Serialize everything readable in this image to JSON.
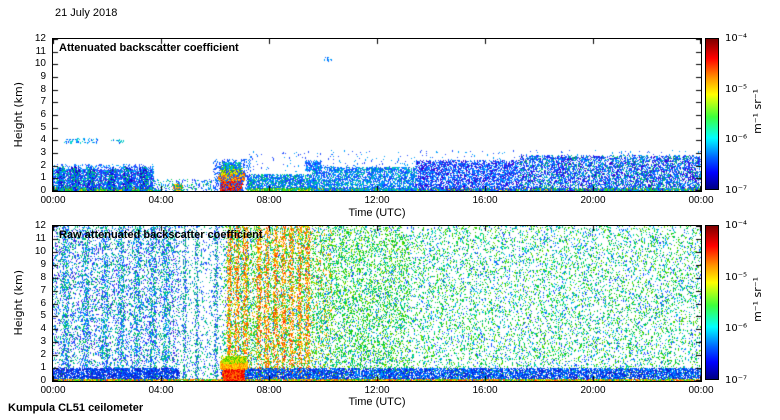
{
  "figure": {
    "date": "21 July 2018",
    "instrument": "Kumpula CL51 ceilometer"
  },
  "chart_data": [
    {
      "type": "heatmap",
      "title": "Attenuated backscatter coefficient",
      "xlabel": "Time (UTC)",
      "ylabel": "Height (km)",
      "xticks": [
        "00:00",
        "04:00",
        "08:00",
        "12:00",
        "16:00",
        "20:00",
        "00:00"
      ],
      "yticks": [
        "12",
        "11",
        "10",
        "9",
        "8",
        "7",
        "6",
        "5",
        "4",
        "3",
        "2",
        "1",
        "0"
      ],
      "x_range_hours": [
        0,
        24
      ],
      "ylim_km": [
        0,
        12
      ],
      "grid": false,
      "colorbar": {
        "scale": "log",
        "range": [
          "1e-7",
          "1e-4"
        ],
        "ticks": [
          "10⁻⁴",
          "10⁻⁵",
          "10⁻⁶",
          "10⁻⁷"
        ],
        "unit": "m⁻¹ sr⁻¹",
        "stops": [
          [
            "#7f0000",
            0
          ],
          [
            "#ff0000",
            13
          ],
          [
            "#ff9600",
            26
          ],
          [
            "#ffff00",
            37
          ],
          [
            "#3cff3c",
            52
          ],
          [
            "#00ffff",
            66
          ],
          [
            "#0064ff",
            79
          ],
          [
            "#0000ff",
            89
          ],
          [
            "#000082",
            100
          ]
        ]
      },
      "features": [
        {
          "kind": "speckle",
          "x": [
            0,
            0.155
          ],
          "y": [
            0,
            0.3
          ],
          "n": 1400,
          "colors": [
            "#00a550",
            "#00c832",
            "#64dc00",
            "#00b48c",
            "#ffc800"
          ]
        },
        {
          "kind": "speckle",
          "x": [
            0,
            0.155
          ],
          "y": [
            0.2,
            1.7
          ],
          "n": 2400,
          "colors": [
            "#1e3cff",
            "#0050ff",
            "#0096ff",
            "#4b0fd2",
            "#00c8b4"
          ]
        },
        {
          "kind": "speckle",
          "x": [
            0,
            0.155
          ],
          "y": [
            1.5,
            2.1
          ],
          "n": 280,
          "colors": [
            "#2850ff",
            "#00aaff"
          ]
        },
        {
          "kind": "columns",
          "centers": [
            0.012,
            0.035,
            0.058,
            0.09,
            0.115,
            0.14
          ],
          "width": 0.012,
          "y": [
            0,
            1.9
          ],
          "n": 240,
          "colors": [
            "#0032ff",
            "#0082ff",
            "#00c86e",
            "#1e00c8"
          ]
        },
        {
          "kind": "speckle",
          "x": [
            0.018,
            0.07
          ],
          "y": [
            3.75,
            4.15
          ],
          "n": 70,
          "colors": [
            "#0046ff",
            "#00aaff",
            "#00d2d2"
          ]
        },
        {
          "kind": "speckle",
          "x": [
            0.09,
            0.11
          ],
          "y": [
            3.85,
            4.05
          ],
          "n": 16,
          "colors": [
            "#0046ff",
            "#00c8c8"
          ]
        },
        {
          "kind": "speckle",
          "x": [
            0.155,
            0.245
          ],
          "y": [
            0,
            0.9
          ],
          "n": 220,
          "colors": [
            "#2850ff",
            "#00a0ff",
            "#00c864"
          ]
        },
        {
          "kind": "speckle",
          "x": [
            0.186,
            0.2
          ],
          "y": [
            0,
            0.5
          ],
          "n": 150,
          "colors": [
            "#00c850",
            "#ffd200",
            "#ff8c00",
            "#1e50ff"
          ]
        },
        {
          "kind": "speckle",
          "x": [
            0.258,
            0.292
          ],
          "y": [
            0,
            0.95
          ],
          "n": 1500,
          "colors": [
            "#ff0000",
            "#ff3c00",
            "#c80000",
            "#ff7800"
          ]
        },
        {
          "kind": "speckle",
          "x": [
            0.256,
            0.296
          ],
          "y": [
            0.85,
            1.45
          ],
          "n": 800,
          "colors": [
            "#ff7800",
            "#ffb400",
            "#ffe100",
            "#ff4600"
          ]
        },
        {
          "kind": "speckle",
          "x": [
            0.259,
            0.293
          ],
          "y": [
            1.35,
            1.85
          ],
          "n": 420,
          "colors": [
            "#ffe100",
            "#a0e600",
            "#28c800"
          ]
        },
        {
          "kind": "speckle",
          "x": [
            0.262,
            0.29
          ],
          "y": [
            1.75,
            2.25
          ],
          "n": 240,
          "colors": [
            "#28c800",
            "#00d2a0",
            "#00a0ff"
          ]
        },
        {
          "kind": "speckle",
          "x": [
            0.248,
            0.305
          ],
          "y": [
            0,
            2.5
          ],
          "n": 400,
          "colors": [
            "#1e3cff",
            "#0078ff"
          ]
        },
        {
          "kind": "speckle",
          "x": [
            0.3,
            0.4
          ],
          "y": [
            0,
            1.3
          ],
          "n": 1400,
          "colors": [
            "#1e3cff",
            "#0064ff",
            "#00a0ff",
            "#00c878"
          ]
        },
        {
          "kind": "speckle",
          "x": [
            0.3,
            1
          ],
          "y": [
            0,
            0.22
          ],
          "n": 2600,
          "colors": [
            "#00aa44",
            "#22cc22",
            "#66dd00",
            "#00bb99",
            "#ffcc00"
          ]
        },
        {
          "kind": "speckle",
          "x": [
            0.39,
            0.415
          ],
          "y": [
            1.6,
            2.4
          ],
          "n": 200,
          "colors": [
            "#1e3cff",
            "#0078ff",
            "#00b4ff"
          ]
        },
        {
          "kind": "speckle",
          "x": [
            0.4,
            0.56
          ],
          "y": [
            0,
            1.9
          ],
          "n": 2400,
          "colors": [
            "#1e3cff",
            "#0064ff",
            "#0096ff",
            "#00c8a0"
          ]
        },
        {
          "kind": "speckle",
          "x": [
            0.56,
            0.72
          ],
          "y": [
            0,
            2.4
          ],
          "n": 2800,
          "colors": [
            "#1e3cff",
            "#0064ff",
            "#0096ff",
            "#3c00d2"
          ]
        },
        {
          "kind": "speckle",
          "x": [
            0.72,
            1
          ],
          "y": [
            0,
            2.8
          ],
          "n": 5000,
          "colors": [
            "#1e3cff",
            "#0064ff",
            "#0096ff",
            "#3c00d2",
            "#00b478"
          ]
        },
        {
          "kind": "speckle",
          "x": [
            0.3,
            1
          ],
          "y": [
            1.5,
            3.2
          ],
          "n": 380,
          "colors": [
            "#2850ff",
            "#00a0ff"
          ]
        },
        {
          "kind": "speckle",
          "x": [
            0.418,
            0.43
          ],
          "y": [
            10.3,
            10.6
          ],
          "n": 10,
          "colors": [
            "#0064ff",
            "#00a0ff"
          ]
        }
      ]
    },
    {
      "type": "heatmap",
      "title": "Raw attenuated backscatter coefficient",
      "xlabel": "Time (UTC)",
      "ylabel": "Height (km)",
      "xticks": [
        "00:00",
        "04:00",
        "08:00",
        "12:00",
        "16:00",
        "20:00",
        "00:00"
      ],
      "yticks": [
        "12",
        "11",
        "10",
        "9",
        "8",
        "7",
        "6",
        "5",
        "4",
        "3",
        "2",
        "1",
        "0"
      ],
      "x_range_hours": [
        0,
        24
      ],
      "ylim_km": [
        0,
        12
      ],
      "grid": false,
      "colorbar": {
        "scale": "log",
        "range": [
          "1e-7",
          "1e-4"
        ],
        "ticks": [
          "10⁻⁴",
          "10⁻⁵",
          "10⁻⁶",
          "10⁻⁷"
        ],
        "unit": "m⁻¹ sr⁻¹",
        "stops": [
          [
            "#7f0000",
            0
          ],
          [
            "#ff0000",
            13
          ],
          [
            "#ff9600",
            26
          ],
          [
            "#ffff00",
            37
          ],
          [
            "#3cff3c",
            52
          ],
          [
            "#00ffff",
            66
          ],
          [
            "#0064ff",
            79
          ],
          [
            "#0000ff",
            89
          ],
          [
            "#000082",
            100
          ]
        ]
      },
      "features": [
        {
          "kind": "speckle",
          "x": [
            0,
            0.195
          ],
          "y": [
            0,
            12
          ],
          "n": 5200,
          "colors": [
            "#2850ff",
            "#0082ff",
            "#00c8a0",
            "#00aa55",
            "#4b28e6"
          ]
        },
        {
          "kind": "columns",
          "centers": [
            0.02,
            0.05,
            0.08,
            0.105,
            0.13,
            0.155,
            0.175
          ],
          "width": 0.01,
          "y": [
            0,
            12
          ],
          "n": 340,
          "colors": [
            "#1e46ff",
            "#00a0ff",
            "#00c864"
          ]
        },
        {
          "kind": "speckle",
          "x": [
            0.195,
            0.26
          ],
          "y": [
            0,
            12
          ],
          "n": 850,
          "colors": [
            "#2850ff",
            "#00a0c8",
            "#00c864"
          ]
        },
        {
          "kind": "columns",
          "centers": [
            0.203,
            0.222,
            0.252
          ],
          "width": 0.005,
          "y": [
            0,
            12
          ],
          "n": 220,
          "colors": [
            "#2850ff",
            "#00b478"
          ]
        },
        {
          "kind": "speckle",
          "x": [
            0.26,
            1
          ],
          "y": [
            0,
            12
          ],
          "n": 15500,
          "colors": [
            "#00c832",
            "#28d200",
            "#00be78",
            "#64dc00",
            "#00a0ff",
            "#1e50ff",
            "#00dcb4"
          ]
        },
        {
          "kind": "speckle",
          "x": [
            0.27,
            0.55
          ],
          "y": [
            0,
            12
          ],
          "n": 4000,
          "colors": [
            "#00c832",
            "#50d200",
            "#00c88c",
            "#96e600"
          ]
        },
        {
          "kind": "columns",
          "centers": [
            0.272,
            0.284,
            0.297,
            0.318,
            0.33,
            0.344,
            0.356,
            0.368,
            0.381,
            0.393
          ],
          "width": 0.007,
          "y": [
            0,
            12
          ],
          "n": 320,
          "colors": [
            "#ff8c00",
            "#ff5a00",
            "#ffb400",
            "#ff3200",
            "#ffdc00"
          ]
        },
        {
          "kind": "speckle",
          "x": [
            0.27,
            0.43
          ],
          "y": [
            0,
            12
          ],
          "n": 800,
          "colors": [
            "#ff8c00",
            "#ffb400"
          ]
        },
        {
          "kind": "speckle",
          "x": [
            0,
            0.195
          ],
          "y": [
            0,
            1
          ],
          "n": 2000,
          "colors": [
            "#0028dc",
            "#0046ff",
            "#1e1ec8",
            "#0064ff"
          ]
        },
        {
          "kind": "speckle",
          "x": [
            0.26,
            1
          ],
          "y": [
            0,
            1
          ],
          "n": 7000,
          "colors": [
            "#0028dc",
            "#0046ff",
            "#1e1ec8",
            "#0064ff",
            "#00a0ff"
          ]
        },
        {
          "kind": "speckle",
          "x": [
            0,
            1
          ],
          "y": [
            0,
            0.15
          ],
          "n": 2400,
          "colors": [
            "#00c832",
            "#ffd200",
            "#ff8c00",
            "#64dc00",
            "#ff4600"
          ]
        },
        {
          "kind": "speckle",
          "x": [
            0.262,
            0.295
          ],
          "y": [
            0,
            1.05
          ],
          "n": 1500,
          "colors": [
            "#ff0000",
            "#dc0000",
            "#ff4600",
            "#ff7800"
          ]
        },
        {
          "kind": "speckle",
          "x": [
            0.258,
            0.3
          ],
          "y": [
            0.95,
            1.5
          ],
          "n": 750,
          "colors": [
            "#ff7800",
            "#ffb400",
            "#ffe100"
          ]
        },
        {
          "kind": "speckle",
          "x": [
            0.26,
            0.298
          ],
          "y": [
            1.4,
            1.9
          ],
          "n": 400,
          "colors": [
            "#ffe100",
            "#a0e600",
            "#46c800"
          ]
        }
      ]
    }
  ]
}
